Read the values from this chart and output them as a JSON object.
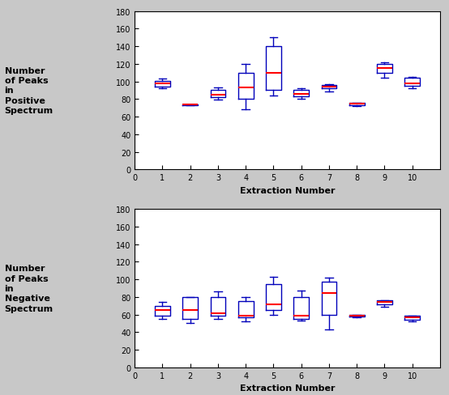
{
  "pos_boxes": [
    {
      "whislo": 92,
      "q1": 94,
      "med": 98,
      "q3": 101,
      "whishi": 103,
      "label": "1"
    },
    {
      "whislo": 73,
      "q1": 73,
      "med": 74,
      "q3": 74,
      "whishi": 74,
      "label": "2"
    },
    {
      "whislo": 79,
      "q1": 82,
      "med": 85,
      "q3": 90,
      "whishi": 93,
      "label": "3"
    },
    {
      "whislo": 68,
      "q1": 80,
      "med": 93,
      "q3": 110,
      "whishi": 120,
      "label": "4"
    },
    {
      "whislo": 84,
      "q1": 90,
      "med": 110,
      "q3": 140,
      "whishi": 150,
      "label": "5"
    },
    {
      "whislo": 80,
      "q1": 83,
      "med": 86,
      "q3": 90,
      "whishi": 92,
      "label": "6"
    },
    {
      "whislo": 89,
      "q1": 92,
      "med": 94,
      "q3": 96,
      "whishi": 97,
      "label": "7"
    },
    {
      "whislo": 72,
      "q1": 73,
      "med": 75,
      "q3": 76,
      "whishi": 76,
      "label": "8"
    },
    {
      "whislo": 104,
      "q1": 110,
      "med": 115,
      "q3": 120,
      "whishi": 122,
      "label": "9"
    },
    {
      "whislo": 92,
      "q1": 95,
      "med": 98,
      "q3": 104,
      "whishi": 105,
      "label": "10"
    }
  ],
  "neg_boxes": [
    {
      "whislo": 55,
      "q1": 59,
      "med": 65,
      "q3": 70,
      "whishi": 74,
      "label": "1"
    },
    {
      "whislo": 50,
      "q1": 55,
      "med": 65,
      "q3": 80,
      "whishi": 80,
      "label": "2"
    },
    {
      "whislo": 55,
      "q1": 59,
      "med": 61,
      "q3": 80,
      "whishi": 86,
      "label": "3"
    },
    {
      "whislo": 52,
      "q1": 57,
      "med": 59,
      "q3": 75,
      "whishi": 80,
      "label": "4"
    },
    {
      "whislo": 60,
      "q1": 65,
      "med": 72,
      "q3": 95,
      "whishi": 103,
      "label": "5"
    },
    {
      "whislo": 53,
      "q1": 55,
      "med": 59,
      "q3": 80,
      "whishi": 87,
      "label": "6"
    },
    {
      "whislo": 43,
      "q1": 60,
      "med": 84,
      "q3": 97,
      "whishi": 102,
      "label": "7"
    },
    {
      "whislo": 57,
      "q1": 58,
      "med": 59,
      "q3": 60,
      "whishi": 60,
      "label": "8"
    },
    {
      "whislo": 69,
      "q1": 72,
      "med": 74,
      "q3": 76,
      "whishi": 76,
      "label": "9"
    },
    {
      "whislo": 52,
      "q1": 54,
      "med": 57,
      "q3": 59,
      "whishi": 59,
      "label": "10"
    }
  ],
  "pos_ylabel": "Number\nof Peaks\nin\nPositive\nSpectrum",
  "neg_ylabel": "Number\nof Peaks\nin\nNegative\nSpectrum",
  "xlabel": "Extraction Number",
  "ylim": [
    0,
    180
  ],
  "yticks": [
    0,
    20,
    40,
    60,
    80,
    100,
    120,
    140,
    160,
    180
  ],
  "xlim": [
    0,
    11
  ],
  "xticks": [
    0,
    1,
    2,
    3,
    4,
    5,
    6,
    7,
    8,
    9,
    10
  ],
  "xtick_labels": [
    "0",
    "1",
    "2",
    "3",
    "4",
    "5",
    "6",
    "7",
    "8",
    "9",
    "10"
  ],
  "box_color": "#0000bb",
  "median_color": "#ff0000",
  "whisker_color": "#0000bb",
  "cap_color": "#0000bb",
  "bg_color": "#ffffff",
  "fig_bg_color": "#c8c8c8"
}
